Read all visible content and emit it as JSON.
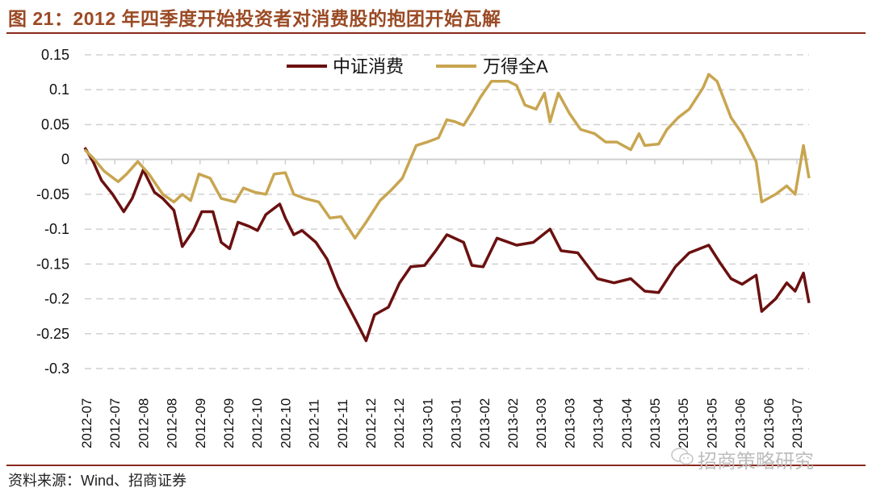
{
  "title": "图 21：2012 年四季度开始投资者对消费股的抱团开始瓦解",
  "source": "资料来源：Wind、招商证券",
  "watermark": "招商策略研究",
  "colors": {
    "consumer": "#6b1010",
    "all_a": "#c8a550",
    "title": "#9a4a24",
    "rule": "#8b2a1e",
    "grid": "#d0d0d0"
  },
  "chart_data": {
    "type": "line",
    "title": "2012 年四季度开始投资者对消费股的抱团开始瓦解",
    "xlabel": "",
    "ylabel": "",
    "x_unit": "trading-day index from 2012-07",
    "xlim": [
      0,
      260
    ],
    "ylim": [
      -0.3,
      0.15
    ],
    "yticks": [
      "0.15",
      "0.1",
      "0.05",
      "0",
      "-0.05",
      "-0.1",
      "-0.15",
      "-0.2",
      "-0.25",
      "-0.3"
    ],
    "ytick_values": [
      0.15,
      0.1,
      0.05,
      0,
      -0.05,
      -0.1,
      -0.15,
      -0.2,
      -0.25,
      -0.3
    ],
    "xticks": [
      "2012-07",
      "2012-07",
      "2012-08",
      "2012-08",
      "2012-09",
      "2012-09",
      "2012-10",
      "2012-10",
      "2012-11",
      "2012-11",
      "2012-12",
      "2012-12",
      "2013-01",
      "2013-01",
      "2013-02",
      "2013-02",
      "2013-03",
      "2013-03",
      "2013-04",
      "2013-04",
      "2013-05",
      "2013-05",
      "2013-05",
      "2013-06",
      "2013-06",
      "2013-07"
    ],
    "grid": "horizontal dashed",
    "legend_position": "top-center",
    "series": [
      {
        "name": "中证消费",
        "color": "#6b1010",
        "x": [
          0,
          3,
          6,
          10,
          14,
          17,
          21,
          25,
          28,
          32,
          35,
          39,
          42,
          46,
          49,
          52,
          55,
          59,
          62,
          65,
          70,
          72,
          75,
          78,
          83,
          87,
          91,
          97,
          101,
          104,
          109,
          113,
          117,
          122,
          126,
          130,
          136,
          139,
          143,
          148,
          155,
          161,
          167,
          171,
          177,
          184,
          190,
          196,
          201,
          206,
          212,
          217,
          224,
          228,
          232,
          236,
          241,
          243,
          248,
          252,
          255,
          258,
          260
        ],
        "values": [
          0.017,
          -0.003,
          -0.03,
          -0.05,
          -0.075,
          -0.056,
          -0.015,
          -0.047,
          -0.056,
          -0.073,
          -0.125,
          -0.102,
          -0.075,
          -0.075,
          -0.119,
          -0.128,
          -0.09,
          -0.096,
          -0.102,
          -0.079,
          -0.064,
          -0.084,
          -0.108,
          -0.102,
          -0.119,
          -0.143,
          -0.183,
          -0.229,
          -0.26,
          -0.223,
          -0.212,
          -0.177,
          -0.154,
          -0.152,
          -0.131,
          -0.108,
          -0.119,
          -0.152,
          -0.154,
          -0.113,
          -0.123,
          -0.119,
          -0.1,
          -0.131,
          -0.134,
          -0.171,
          -0.177,
          -0.171,
          -0.189,
          -0.191,
          -0.154,
          -0.134,
          -0.123,
          -0.148,
          -0.171,
          -0.179,
          -0.166,
          -0.218,
          -0.2,
          -0.177,
          -0.189,
          -0.163,
          -0.206
        ]
      },
      {
        "name": "万得全A",
        "color": "#c8a550",
        "x": [
          0,
          3,
          7,
          12,
          15,
          19,
          23,
          28,
          32,
          35,
          38,
          41,
          45,
          49,
          54,
          57,
          61,
          65,
          68,
          72,
          75,
          79,
          84,
          88,
          92,
          97,
          101,
          106,
          110,
          114,
          119,
          123,
          127,
          130,
          133,
          136,
          139,
          142,
          146,
          152,
          155,
          158,
          162,
          165,
          167,
          170,
          174,
          178,
          183,
          187,
          191,
          196,
          199,
          201,
          206,
          209,
          213,
          217,
          222,
          224,
          227,
          232,
          236,
          241,
          243,
          248,
          252,
          255,
          258,
          260
        ],
        "values": [
          0.014,
          0.002,
          -0.017,
          -0.032,
          -0.021,
          -0.003,
          -0.021,
          -0.05,
          -0.061,
          -0.05,
          -0.059,
          -0.021,
          -0.027,
          -0.056,
          -0.061,
          -0.041,
          -0.047,
          -0.05,
          -0.021,
          -0.019,
          -0.05,
          -0.056,
          -0.061,
          -0.084,
          -0.082,
          -0.113,
          -0.09,
          -0.059,
          -0.044,
          -0.027,
          0.02,
          0.025,
          0.031,
          0.057,
          0.054,
          0.049,
          0.068,
          0.089,
          0.112,
          0.112,
          0.106,
          0.078,
          0.072,
          0.095,
          0.054,
          0.095,
          0.066,
          0.043,
          0.037,
          0.025,
          0.025,
          0.014,
          0.037,
          0.02,
          0.022,
          0.043,
          0.06,
          0.072,
          0.103,
          0.122,
          0.112,
          0.06,
          0.037,
          -0.003,
          -0.061,
          -0.05,
          -0.038,
          -0.05,
          0.02,
          -0.027
        ]
      }
    ]
  }
}
